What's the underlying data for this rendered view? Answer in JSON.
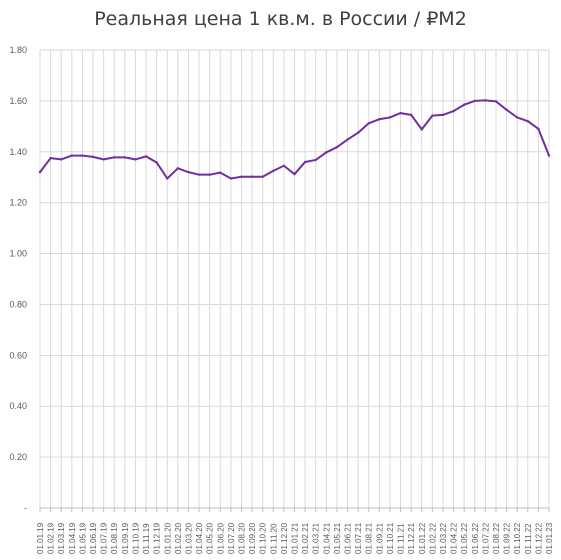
{
  "chart_data": {
    "type": "line",
    "title": "Реальная цена 1 кв.м. в России / ₽M2",
    "xlabel": "",
    "ylabel": "",
    "ylim": [
      0,
      1.8
    ],
    "y_ticks": [
      "-",
      "0.20",
      "0.40",
      "0.60",
      "0.80",
      "1.00",
      "1.20",
      "1.40",
      "1.60",
      "1.80"
    ],
    "grid": true,
    "legend": "none",
    "line_color": "#7030a0",
    "grid_color": "#d9d9d9",
    "categories": [
      "01.01.19",
      "01.02.19",
      "01.03.19",
      "01.04.19",
      "01.05.19",
      "01.06.19",
      "01.07.19",
      "01.08.19",
      "01.09.19",
      "01.10.19",
      "01.11.19",
      "01.12.19",
      "01.01.20",
      "01.02.20",
      "01.03.20",
      "01.04.20",
      "01.05.20",
      "01.06.20",
      "01.07.20",
      "01.08.20",
      "01.09.20",
      "01.10.20",
      "01.11.20",
      "01.12.20",
      "01.01.21",
      "01.02.21",
      "01.03.21",
      "01.04.21",
      "01.05.21",
      "01.06.21",
      "01.07.21",
      "01.08.21",
      "01.09.21",
      "01.10.21",
      "01.11.21",
      "01.12.21",
      "01.01.22",
      "01.02.22",
      "01.03.22",
      "01.04.22",
      "01.05.22",
      "01.06.22",
      "01.07.22",
      "01.08.22",
      "01.09.22",
      "01.10.22",
      "01.11.22",
      "01.12.22",
      "01.01.23"
    ],
    "series": [
      {
        "values": [
          1.32,
          1.375,
          1.37,
          1.385,
          1.385,
          1.38,
          1.37,
          1.378,
          1.378,
          1.37,
          1.382,
          1.358,
          1.295,
          1.335,
          1.32,
          1.31,
          1.31,
          1.318,
          1.295,
          1.302,
          1.302,
          1.302,
          1.325,
          1.345,
          1.312,
          1.36,
          1.368,
          1.398,
          1.418,
          1.448,
          1.475,
          1.512,
          1.528,
          1.535,
          1.552,
          1.545,
          1.488,
          1.542,
          1.545,
          1.56,
          1.585,
          1.6,
          1.602,
          1.598,
          1.565,
          1.535,
          1.52,
          1.49,
          1.385
        ]
      }
    ]
  }
}
